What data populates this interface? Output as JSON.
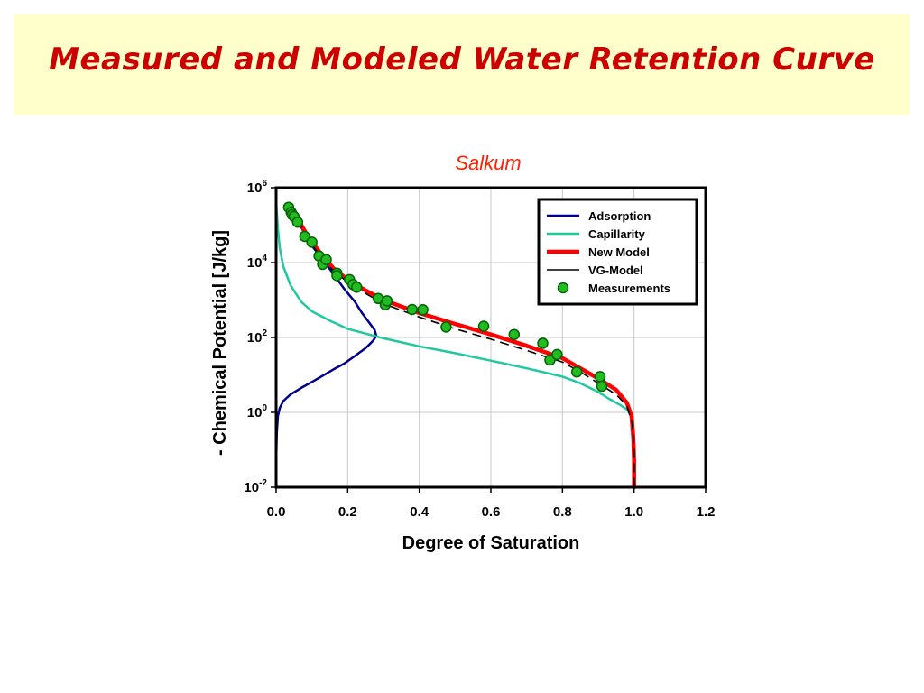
{
  "slide": {
    "title": "Measured and Modeled Water Retention Curve"
  },
  "chart_data": {
    "type": "line",
    "title": "Salkum",
    "xlabel": "Degree of Saturation",
    "ylabel": "- Chemical Potential [J/kg]",
    "xlim": [
      0.0,
      1.2
    ],
    "ylim": [
      0.01,
      1000000
    ],
    "y_scale": "log",
    "grid": true,
    "legend_placement": "top-right",
    "x_ticks": [
      "0.0",
      "0.2",
      "0.4",
      "0.6",
      "0.8",
      "1.0",
      "1.2"
    ],
    "y_ticks": [
      {
        "base": "10",
        "exp": "6"
      },
      {
        "base": "10",
        "exp": "4"
      },
      {
        "base": "10",
        "exp": "2"
      },
      {
        "base": "10",
        "exp": "0"
      },
      {
        "base": "10",
        "exp": "-2"
      }
    ],
    "series": [
      {
        "name": "Adsorption",
        "color": "#00008b",
        "style": "solid",
        "points": [
          [
            0.0,
            0.01
          ],
          [
            0.0,
            0.05
          ],
          [
            0.002,
            0.3
          ],
          [
            0.005,
            0.8
          ],
          [
            0.01,
            1.3
          ],
          [
            0.02,
            2.0
          ],
          [
            0.04,
            3.0
          ],
          [
            0.07,
            4.5
          ],
          [
            0.1,
            6.5
          ],
          [
            0.13,
            9.5
          ],
          [
            0.16,
            14
          ],
          [
            0.19,
            20
          ],
          [
            0.22,
            32
          ],
          [
            0.25,
            52
          ],
          [
            0.27,
            80
          ],
          [
            0.28,
            110
          ],
          [
            0.275,
            160
          ],
          [
            0.26,
            250
          ],
          [
            0.24,
            450
          ],
          [
            0.22,
            900
          ],
          [
            0.19,
            2000
          ],
          [
            0.16,
            5000
          ],
          [
            0.13,
            12000
          ],
          [
            0.1,
            28000
          ],
          [
            0.08,
            60000
          ],
          [
            0.06,
            130000
          ],
          [
            0.045,
            250000
          ]
        ]
      },
      {
        "name": "Capillarity",
        "color": "#20c8a0",
        "style": "solid",
        "points": [
          [
            0.0,
            400000
          ],
          [
            0.005,
            80000
          ],
          [
            0.01,
            25000
          ],
          [
            0.02,
            8000
          ],
          [
            0.04,
            2500
          ],
          [
            0.07,
            900
          ],
          [
            0.1,
            500
          ],
          [
            0.15,
            280
          ],
          [
            0.2,
            170
          ],
          [
            0.3,
            95
          ],
          [
            0.4,
            58
          ],
          [
            0.5,
            38
          ],
          [
            0.6,
            24
          ],
          [
            0.7,
            15
          ],
          [
            0.8,
            9
          ],
          [
            0.85,
            6
          ],
          [
            0.9,
            3.5
          ],
          [
            0.93,
            2.3
          ],
          [
            0.96,
            1.6
          ],
          [
            0.98,
            1.2
          ],
          [
            0.993,
            0.8
          ]
        ]
      },
      {
        "name": "New Model",
        "color": "#ff0000",
        "style": "solid",
        "points": [
          [
            0.04,
            300000
          ],
          [
            0.06,
            150000
          ],
          [
            0.08,
            70000
          ],
          [
            0.1,
            35000
          ],
          [
            0.13,
            15000
          ],
          [
            0.16,
            7000
          ],
          [
            0.2,
            3500
          ],
          [
            0.25,
            1800
          ],
          [
            0.3,
            1000
          ],
          [
            0.4,
            450
          ],
          [
            0.5,
            230
          ],
          [
            0.6,
            120
          ],
          [
            0.7,
            60
          ],
          [
            0.8,
            28
          ],
          [
            0.85,
            15
          ],
          [
            0.9,
            8
          ],
          [
            0.95,
            4
          ],
          [
            0.98,
            1.8
          ],
          [
            0.993,
            0.8
          ],
          [
            0.998,
            0.2
          ],
          [
            1.0,
            0.05
          ],
          [
            1.0,
            0.01
          ]
        ]
      },
      {
        "name": "VG-Model",
        "color": "#000000",
        "style": "dashed",
        "points": [
          [
            0.04,
            300000
          ],
          [
            0.06,
            140000
          ],
          [
            0.08,
            65000
          ],
          [
            0.1,
            30000
          ],
          [
            0.13,
            12500
          ],
          [
            0.16,
            6000
          ],
          [
            0.2,
            3000
          ],
          [
            0.25,
            1500
          ],
          [
            0.3,
            800
          ],
          [
            0.4,
            350
          ],
          [
            0.5,
            170
          ],
          [
            0.6,
            90
          ],
          [
            0.7,
            45
          ],
          [
            0.8,
            22
          ],
          [
            0.85,
            12
          ],
          [
            0.9,
            6
          ],
          [
            0.95,
            3
          ],
          [
            0.98,
            1.5
          ],
          [
            0.995,
            0.5
          ],
          [
            1.0,
            0.1
          ],
          [
            1.0,
            0.01
          ]
        ]
      },
      {
        "name": "Measurements",
        "color": "#22bb22",
        "style": "markers",
        "points": [
          [
            0.035,
            300000
          ],
          [
            0.042,
            220000
          ],
          [
            0.045,
            190000
          ],
          [
            0.05,
            170000
          ],
          [
            0.06,
            120000
          ],
          [
            0.08,
            50000
          ],
          [
            0.1,
            35000
          ],
          [
            0.12,
            15000
          ],
          [
            0.13,
            9000
          ],
          [
            0.14,
            12000
          ],
          [
            0.17,
            5200
          ],
          [
            0.17,
            4500
          ],
          [
            0.205,
            3500
          ],
          [
            0.215,
            2600
          ],
          [
            0.225,
            2200
          ],
          [
            0.285,
            1100
          ],
          [
            0.305,
            750
          ],
          [
            0.31,
            950
          ],
          [
            0.38,
            560
          ],
          [
            0.41,
            550
          ],
          [
            0.475,
            190
          ],
          [
            0.58,
            200
          ],
          [
            0.665,
            120
          ],
          [
            0.745,
            70
          ],
          [
            0.765,
            25
          ],
          [
            0.785,
            35
          ],
          [
            0.84,
            12
          ],
          [
            0.905,
            9
          ],
          [
            0.91,
            5
          ]
        ]
      }
    ]
  }
}
